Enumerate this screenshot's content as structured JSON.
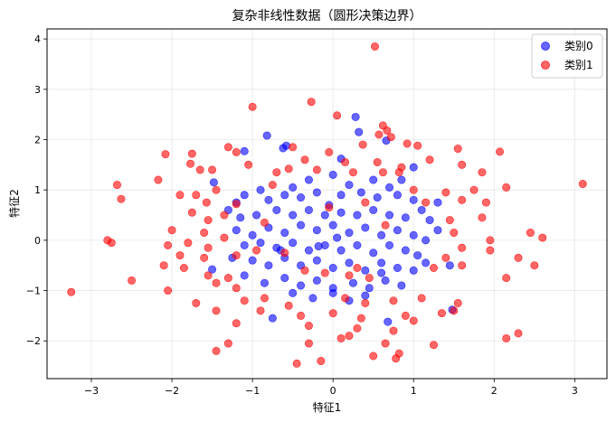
{
  "chart_data": {
    "type": "scatter",
    "title": "复杂非线性数据（圆形决策边界）",
    "xlabel": "特征1",
    "ylabel": "特征2",
    "xlim": [
      -3.55,
      3.4
    ],
    "ylim": [
      -2.75,
      4.2
    ],
    "xticks": [
      -3,
      -2,
      -1,
      0,
      1,
      2,
      3
    ],
    "yticks": [
      -2,
      -1,
      0,
      1,
      2,
      3,
      4
    ],
    "grid": true,
    "legend_position": "top-right",
    "series": [
      {
        "name": "类别0",
        "color": "#0000ff",
        "points": [
          [
            -0.82,
            2.08
          ],
          [
            -0.58,
            1.88
          ],
          [
            -0.62,
            1.83
          ],
          [
            -1.1,
            1.77
          ],
          [
            0.28,
            2.45
          ],
          [
            0.32,
            2.15
          ],
          [
            0.66,
            1.98
          ],
          [
            0.1,
            1.62
          ],
          [
            -1.48,
            1.15
          ],
          [
            1.0,
            1.45
          ],
          [
            -0.9,
            1.0
          ],
          [
            -0.5,
            1.05
          ],
          [
            -0.3,
            1.2
          ],
          [
            0.0,
            1.3
          ],
          [
            0.2,
            1.1
          ],
          [
            0.5,
            1.2
          ],
          [
            0.7,
            1.05
          ],
          [
            -1.1,
            0.9
          ],
          [
            -0.8,
            0.8
          ],
          [
            -0.6,
            0.9
          ],
          [
            -0.4,
            0.85
          ],
          [
            -0.2,
            0.95
          ],
          [
            0.1,
            0.9
          ],
          [
            0.35,
            0.95
          ],
          [
            0.55,
            0.85
          ],
          [
            0.8,
            0.9
          ],
          [
            1.0,
            0.8
          ],
          [
            1.1,
            0.6
          ],
          [
            -1.3,
            0.6
          ],
          [
            -1.15,
            0.45
          ],
          [
            -0.95,
            0.5
          ],
          [
            -0.7,
            0.6
          ],
          [
            -0.5,
            0.5
          ],
          [
            -0.3,
            0.6
          ],
          [
            -0.1,
            0.5
          ],
          [
            0.1,
            0.55
          ],
          [
            0.3,
            0.5
          ],
          [
            0.5,
            0.6
          ],
          [
            0.7,
            0.5
          ],
          [
            0.9,
            0.45
          ],
          [
            1.2,
            0.4
          ],
          [
            1.3,
            0.2
          ],
          [
            -1.2,
            0.2
          ],
          [
            -1.0,
            0.1
          ],
          [
            -0.8,
            0.25
          ],
          [
            -0.6,
            0.15
          ],
          [
            -0.4,
            0.3
          ],
          [
            -0.2,
            0.2
          ],
          [
            0.0,
            0.3
          ],
          [
            0.2,
            0.15
          ],
          [
            0.4,
            0.25
          ],
          [
            0.6,
            0.1
          ],
          [
            0.8,
            0.2
          ],
          [
            1.0,
            0.1
          ],
          [
            1.15,
            0.0
          ],
          [
            -1.1,
            -0.1
          ],
          [
            -0.9,
            -0.05
          ],
          [
            -0.7,
            -0.15
          ],
          [
            -0.5,
            -0.05
          ],
          [
            -0.3,
            -0.2
          ],
          [
            -0.1,
            -0.1
          ],
          [
            0.1,
            -0.2
          ],
          [
            0.3,
            -0.1
          ],
          [
            0.5,
            -0.25
          ],
          [
            0.7,
            -0.1
          ],
          [
            0.9,
            -0.2
          ],
          [
            1.05,
            -0.3
          ],
          [
            -1.25,
            -0.35
          ],
          [
            -1.0,
            -0.4
          ],
          [
            -0.8,
            -0.5
          ],
          [
            -0.6,
            -0.35
          ],
          [
            -0.4,
            -0.5
          ],
          [
            -0.2,
            -0.4
          ],
          [
            0.0,
            -0.55
          ],
          [
            0.2,
            -0.45
          ],
          [
            0.4,
            -0.6
          ],
          [
            0.6,
            -0.45
          ],
          [
            0.8,
            -0.55
          ],
          [
            1.0,
            -0.6
          ],
          [
            1.15,
            -0.45
          ],
          [
            -1.5,
            -0.58
          ],
          [
            -1.1,
            -0.7
          ],
          [
            -0.85,
            -0.85
          ],
          [
            -0.6,
            -0.75
          ],
          [
            -0.4,
            -0.9
          ],
          [
            -0.2,
            -0.8
          ],
          [
            0.0,
            -0.95
          ],
          [
            0.25,
            -0.85
          ],
          [
            0.45,
            -0.95
          ],
          [
            0.65,
            -0.8
          ],
          [
            0.85,
            -0.9
          ],
          [
            -0.5,
            -1.05
          ],
          [
            -0.25,
            -1.15
          ],
          [
            0.0,
            -1.05
          ],
          [
            0.2,
            -1.2
          ],
          [
            0.4,
            -1.1
          ],
          [
            -0.75,
            -1.55
          ],
          [
            0.68,
            -1.62
          ],
          [
            1.48,
            -1.38
          ],
          [
            -0.18,
            -0.12
          ],
          [
            0.05,
            0.05
          ],
          [
            -0.05,
            0.7
          ],
          [
            0.6,
            -0.65
          ],
          [
            -0.65,
            -0.2
          ],
          [
            1.3,
            0.75
          ],
          [
            -1.2,
            0.75
          ],
          [
            0.85,
            1.2
          ],
          [
            1.45,
            -0.5
          ]
        ]
      },
      {
        "name": "类别1",
        "color": "#ff0000",
        "points": [
          [
            0.52,
            3.85
          ],
          [
            -0.27,
            2.75
          ],
          [
            -1.0,
            2.65
          ],
          [
            0.05,
            2.48
          ],
          [
            0.62,
            2.28
          ],
          [
            0.67,
            2.18
          ],
          [
            0.72,
            2.05
          ],
          [
            0.57,
            2.1
          ],
          [
            0.92,
            1.92
          ],
          [
            0.37,
            1.9
          ],
          [
            -0.5,
            1.85
          ],
          [
            -1.3,
            1.85
          ],
          [
            -1.2,
            1.75
          ],
          [
            -1.75,
            1.72
          ],
          [
            -2.08,
            1.71
          ],
          [
            -0.05,
            1.75
          ],
          [
            1.05,
            1.88
          ],
          [
            2.07,
            1.76
          ],
          [
            1.55,
            1.82
          ],
          [
            -1.77,
            1.52
          ],
          [
            -1.5,
            1.4
          ],
          [
            -1.05,
            1.5
          ],
          [
            -0.35,
            1.6
          ],
          [
            0.15,
            1.55
          ],
          [
            0.55,
            1.55
          ],
          [
            0.85,
            1.45
          ],
          [
            1.2,
            1.6
          ],
          [
            1.6,
            1.5
          ],
          [
            -1.65,
            1.4
          ],
          [
            -0.7,
            1.35
          ],
          [
            -0.2,
            1.4
          ],
          [
            -0.55,
            1.42
          ],
          [
            0.25,
            1.35
          ],
          [
            0.62,
            1.35
          ],
          [
            0.82,
            1.35
          ],
          [
            1.85,
            1.35
          ],
          [
            -2.17,
            1.2
          ],
          [
            -2.68,
            1.1
          ],
          [
            -1.45,
            1.0
          ],
          [
            -1.7,
            0.9
          ],
          [
            -0.75,
            1.1
          ],
          [
            1.0,
            1.0
          ],
          [
            1.4,
            0.95
          ],
          [
            1.75,
            1.0
          ],
          [
            2.15,
            1.05
          ],
          [
            3.1,
            1.12
          ],
          [
            -2.63,
            0.82
          ],
          [
            -1.9,
            0.9
          ],
          [
            -1.57,
            0.75
          ],
          [
            -1.2,
            0.72
          ],
          [
            1.15,
            0.75
          ],
          [
            1.6,
            0.8
          ],
          [
            1.9,
            0.75
          ],
          [
            -1.35,
            0.5
          ],
          [
            -1.75,
            0.55
          ],
          [
            -1.55,
            0.4
          ],
          [
            1.45,
            0.4
          ],
          [
            1.85,
            0.45
          ],
          [
            -2.0,
            0.2
          ],
          [
            -1.6,
            0.15
          ],
          [
            -1.35,
            0.05
          ],
          [
            1.5,
            0.15
          ],
          [
            2.45,
            0.15
          ],
          [
            1.95,
            0.0
          ],
          [
            2.6,
            0.05
          ],
          [
            -2.75,
            -0.05
          ],
          [
            -2.05,
            -0.1
          ],
          [
            -1.8,
            -0.05
          ],
          [
            -1.55,
            -0.15
          ],
          [
            1.6,
            -0.15
          ],
          [
            1.95,
            -0.2
          ],
          [
            -1.9,
            -0.3
          ],
          [
            -1.6,
            -0.35
          ],
          [
            -1.2,
            -0.3
          ],
          [
            1.4,
            -0.35
          ],
          [
            2.3,
            -0.35
          ],
          [
            -2.1,
            -0.5
          ],
          [
            -1.85,
            -0.55
          ],
          [
            -1.55,
            -0.7
          ],
          [
            -1.3,
            -0.75
          ],
          [
            1.25,
            -0.55
          ],
          [
            1.6,
            -0.5
          ],
          [
            2.5,
            -0.5
          ],
          [
            -2.5,
            -0.8
          ],
          [
            -1.45,
            -0.85
          ],
          [
            -1.2,
            -0.95
          ],
          [
            2.15,
            -0.75
          ],
          [
            -3.25,
            -1.03
          ],
          [
            -2.05,
            -1.0
          ],
          [
            -1.7,
            -1.25
          ],
          [
            -1.1,
            -1.2
          ],
          [
            -0.85,
            -1.15
          ],
          [
            -0.55,
            -1.3
          ],
          [
            0.15,
            -1.15
          ],
          [
            0.4,
            -1.25
          ],
          [
            0.75,
            -1.2
          ],
          [
            1.1,
            -1.15
          ],
          [
            1.55,
            -1.25
          ],
          [
            -1.45,
            -1.4
          ],
          [
            -0.9,
            -1.4
          ],
          [
            -0.4,
            -1.5
          ],
          [
            0.0,
            -1.45
          ],
          [
            0.35,
            -1.55
          ],
          [
            0.9,
            -1.5
          ],
          [
            1.35,
            -1.45
          ],
          [
            -1.2,
            -1.65
          ],
          [
            -0.3,
            -1.7
          ],
          [
            0.3,
            -1.75
          ],
          [
            0.75,
            -1.8
          ],
          [
            1.5,
            -1.4
          ],
          [
            -2.8,
            0.0
          ],
          [
            -1.3,
            -2.05
          ],
          [
            0.1,
            -1.95
          ],
          [
            0.2,
            -1.9
          ],
          [
            0.65,
            -2.05
          ],
          [
            1.25,
            -2.08
          ],
          [
            2.15,
            -1.95
          ],
          [
            2.3,
            -1.85
          ],
          [
            -1.45,
            -2.2
          ],
          [
            -0.45,
            -2.45
          ],
          [
            -0.15,
            -2.4
          ],
          [
            0.5,
            -2.3
          ],
          [
            0.82,
            -2.25
          ],
          [
            0.78,
            -2.35
          ],
          [
            1.0,
            -1.6
          ],
          [
            -0.3,
            -2.05
          ],
          [
            -0.95,
            -0.2
          ],
          [
            0.45,
            -0.75
          ],
          [
            0.3,
            -0.55
          ],
          [
            -0.6,
            -0.25
          ],
          [
            0.2,
            -0.7
          ],
          [
            -0.1,
            -0.65
          ],
          [
            -0.35,
            -0.6
          ],
          [
            0.65,
            0.3
          ],
          [
            -0.85,
            0.35
          ],
          [
            -0.05,
            0.65
          ],
          [
            0.4,
            0.75
          ]
        ]
      }
    ]
  }
}
